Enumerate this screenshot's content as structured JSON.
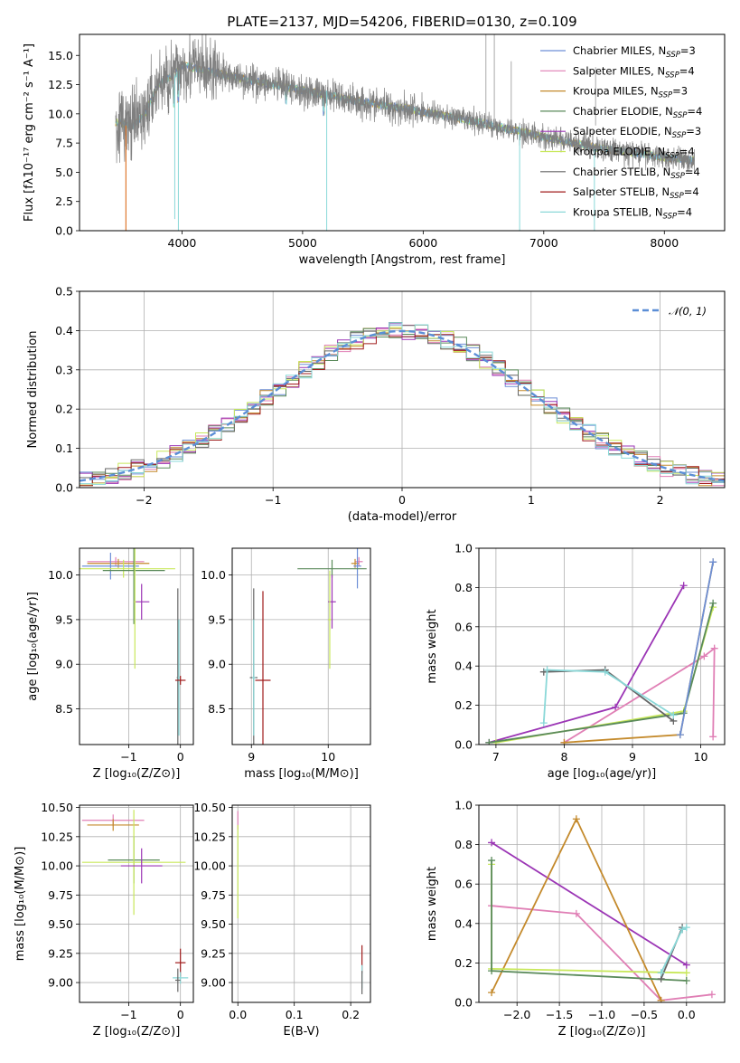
{
  "figure": {
    "title": "PLATE=2137, MJD=54206, FIBERID=0130, z=0.109"
  },
  "colors": {
    "Chabrier MILES": "#6d8fd6",
    "Salpeter MILES": "#e07fb5",
    "Kroupa MILES": "#c48a2c",
    "Chabrier ELODIE": "#5a8a5a",
    "Salpeter ELODIE": "#9b35b5",
    "Kroupa ELODIE": "#c8e85a",
    "Chabrier STELIB": "#666666",
    "Salpeter STELIB": "#a01c1c",
    "Kroupa STELIB": "#8ad8d8",
    "data": "#7f7f7f",
    "gaussian": "#5b8ed6",
    "orange": "#e07a30"
  },
  "chart_data": [
    {
      "id": "spectrum",
      "type": "line",
      "xlabel": "wavelength [Angstrom, rest frame]",
      "ylabel": "Flux [fλ10⁻¹⁷ erg cm⁻² s⁻¹ A⁻¹]",
      "xlim": [
        3150,
        8500
      ],
      "ylim": [
        0,
        16.8
      ],
      "xticks": [
        4000,
        5000,
        6000,
        7000,
        8000
      ],
      "yticks": [
        0.0,
        2.5,
        5.0,
        7.5,
        10.0,
        12.5,
        15.0
      ],
      "grid": false,
      "legend_position": "top-right",
      "legend": [
        "Chabrier MILES, N_SSP=3",
        "Salpeter MILES, N_SSP=4",
        "Kroupa MILES, N_SSP=3",
        "Chabrier ELODIE, N_SSP=4",
        "Salpeter ELODIE, N_SSP=3",
        "Kroupa ELODIE, N_SSP=4",
        "Chabrier STELIB, N_SSP=4",
        "Salpeter STELIB, N_SSP=4",
        "Kroupa STELIB, N_SSP=4"
      ],
      "continuum": {
        "x": [
          3450,
          3600,
          3700,
          3800,
          3950,
          4000,
          4200,
          4500,
          5000,
          5500,
          6000,
          6500,
          7000,
          7500,
          8000,
          8250
        ],
        "y": [
          9.3,
          9.0,
          10.2,
          12.5,
          13.5,
          14.2,
          13.7,
          13.0,
          12.0,
          11.0,
          10.2,
          9.2,
          8.0,
          7.0,
          6.3,
          6.0
        ]
      }
    },
    {
      "id": "residuals",
      "type": "line",
      "xlabel": "(data-model)/error",
      "ylabel": "Normed distribution",
      "xlim": [
        -2.5,
        2.5
      ],
      "ylim": [
        0,
        0.5
      ],
      "xticks": [
        -2,
        -1,
        0,
        1,
        2
      ],
      "yticks": [
        0.0,
        0.1,
        0.2,
        0.3,
        0.4,
        0.5
      ],
      "grid": true,
      "legend_position": "top-right",
      "legend": [
        "𝒩(0, 1)"
      ]
    },
    {
      "id": "age_vs_Z",
      "type": "scatter",
      "xlabel": "Z [log₁₀(Z/Z⊙)]",
      "ylabel": "age  [log₁₀(age/yr)]",
      "xlim": [
        -1.95,
        0.25
      ],
      "ylim": [
        8.1,
        10.3
      ],
      "xticks": [
        -1,
        0
      ],
      "yticks": [
        8.5,
        9.0,
        9.5,
        10.0
      ],
      "grid": true,
      "points": [
        {
          "model": "Salpeter MILES",
          "x": -1.25,
          "y": 10.15,
          "xerr": 0.55,
          "yerr": 0.05
        },
        {
          "model": "Kroupa MILES",
          "x": -1.2,
          "y": 10.13,
          "xerr": 0.6,
          "yerr": 0.05
        },
        {
          "model": "Chabrier MILES",
          "x": -1.35,
          "y": 10.1,
          "xerr": 0.55,
          "yerr": 0.15
        },
        {
          "model": "Kroupa ELODIE",
          "x": -1.1,
          "y": 10.07,
          "xerr": 1.0,
          "yerr": 0.1
        },
        {
          "model": "Chabrier ELODIE",
          "x": -0.9,
          "y": 10.05,
          "xerr": 0.6,
          "yerr": 0.6
        },
        {
          "model": "Salpeter ELODIE",
          "x": -0.75,
          "y": 9.7,
          "xerr": 0.15,
          "yerr": 0.2
        },
        {
          "model": "Kroupa ELODIE",
          "x": -0.88,
          "y": 9.7,
          "xerr": 0.02,
          "yerr": 0.75
        },
        {
          "model": "Chabrier STELIB",
          "x": -0.05,
          "y": 8.85,
          "xerr": 0.02,
          "yerr": 1.0
        },
        {
          "model": "Kroupa STELIB",
          "x": -0.03,
          "y": 8.85,
          "xerr": 0.02,
          "yerr": 0.65
        },
        {
          "model": "Salpeter STELIB",
          "x": 0.0,
          "y": 8.82,
          "xerr": 0.1,
          "yerr": 0.05
        }
      ]
    },
    {
      "id": "age_vs_mass",
      "type": "scatter",
      "xlabel": "mass [log₁₀(M/M⊙)]",
      "xlim": [
        8.75,
        10.55
      ],
      "ylim": [
        8.1,
        10.3
      ],
      "xticks": [
        9,
        10
      ],
      "yticks": [
        8.5,
        9.0,
        9.5,
        10.0
      ],
      "grid": true,
      "points": [
        {
          "model": "Salpeter MILES",
          "x": 10.4,
          "y": 10.15,
          "xerr": 0.05,
          "yerr": 0.05
        },
        {
          "model": "Kroupa MILES",
          "x": 10.35,
          "y": 10.13,
          "xerr": 0.05,
          "yerr": 0.05
        },
        {
          "model": "Chabrier MILES",
          "x": 10.38,
          "y": 10.1,
          "xerr": 0.05,
          "yerr": 0.25
        },
        {
          "model": "Chabrier ELODIE",
          "x": 10.05,
          "y": 10.07,
          "xerr": 0.45,
          "yerr": 0.1
        },
        {
          "model": "Salpeter ELODIE",
          "x": 10.05,
          "y": 9.7,
          "xerr": 0.05,
          "yerr": 0.3
        },
        {
          "model": "Kroupa ELODIE",
          "x": 10.02,
          "y": 9.5,
          "xerr": 0.02,
          "yerr": 0.55
        },
        {
          "model": "Chabrier STELIB",
          "x": 9.03,
          "y": 8.85,
          "xerr": 0.05,
          "yerr": 1.0
        },
        {
          "model": "Kroupa STELIB",
          "x": 9.03,
          "y": 8.85,
          "xerr": 0.02,
          "yerr": 0.65
        },
        {
          "model": "Salpeter STELIB",
          "x": 9.15,
          "y": 8.82,
          "xerr": 0.1,
          "yerr": 1.0
        }
      ]
    },
    {
      "id": "weight_vs_age",
      "type": "line",
      "xlabel": "age  [log₁₀(age/yr)]",
      "ylabel": "mass weight",
      "xlim": [
        6.75,
        10.35
      ],
      "ylim": [
        0,
        1
      ],
      "xticks": [
        7,
        8,
        9,
        10
      ],
      "yticks": [
        0.0,
        0.2,
        0.4,
        0.6,
        0.8,
        1.0
      ],
      "grid": true,
      "series": [
        {
          "model": "Salpeter ELODIE",
          "x": [
            6.9,
            8.75,
            9.75
          ],
          "y": [
            0.01,
            0.19,
            0.81
          ]
        },
        {
          "model": "Salpeter MILES",
          "x": [
            8.0,
            10.05,
            10.2,
            10.18
          ],
          "y": [
            0.01,
            0.45,
            0.49,
            0.04
          ]
        },
        {
          "model": "Kroupa MILES",
          "x": [
            8.0,
            9.7,
            10.18
          ],
          "y": [
            0.01,
            0.05,
            0.93
          ]
        },
        {
          "model": "Kroupa ELODIE",
          "x": [
            7.0,
            9.75,
            10.18
          ],
          "y": [
            0.01,
            0.17,
            0.7
          ]
        },
        {
          "model": "Chabrier ELODIE",
          "x": [
            6.9,
            9.75,
            10.18
          ],
          "y": [
            0.01,
            0.16,
            0.72
          ]
        },
        {
          "model": "Chabrier MILES",
          "x": [
            9.7,
            10.18
          ],
          "y": [
            0.05,
            0.93
          ]
        },
        {
          "model": "Chabrier STELIB",
          "x": [
            7.7,
            8.6,
            9.6
          ],
          "y": [
            0.37,
            0.38,
            0.12
          ]
        },
        {
          "model": "Kroupa STELIB",
          "x": [
            7.7,
            7.75,
            8.6,
            9.6
          ],
          "y": [
            0.11,
            0.38,
            0.37,
            0.15
          ]
        }
      ]
    },
    {
      "id": "mass_vs_Z",
      "type": "scatter",
      "xlabel": "Z [log₁₀(Z/Z⊙)]",
      "ylabel": "mass [log₁₀(M/M⊙)]",
      "xlim": [
        -1.95,
        0.25
      ],
      "ylim": [
        8.83,
        10.52
      ],
      "xticks": [
        -1,
        0
      ],
      "yticks": [
        9.0,
        9.25,
        9.5,
        9.75,
        10.0,
        10.25,
        10.5
      ],
      "grid": true,
      "points": [
        {
          "model": "Salpeter MILES",
          "x": -1.3,
          "y": 10.39,
          "xerr": 0.6,
          "yerr": 0.05
        },
        {
          "model": "Kroupa MILES",
          "x": -1.3,
          "y": 10.35,
          "xerr": 0.5,
          "yerr": 0.05
        },
        {
          "model": "Chabrier ELODIE",
          "x": -0.9,
          "y": 10.05,
          "xerr": 0.5,
          "yerr": 0.2
        },
        {
          "model": "Kroupa ELODIE",
          "x": -0.9,
          "y": 10.03,
          "xerr": 1.0,
          "yerr": 0.45
        },
        {
          "model": "Salpeter ELODIE",
          "x": -0.75,
          "y": 10.0,
          "xerr": 0.4,
          "yerr": 0.15
        },
        {
          "model": "Salpeter STELIB",
          "x": 0.0,
          "y": 9.17,
          "xerr": 0.1,
          "yerr": 0.12
        },
        {
          "model": "Kroupa STELIB",
          "x": 0.0,
          "y": 9.04,
          "xerr": 0.15,
          "yerr": 0.05
        },
        {
          "model": "Chabrier STELIB",
          "x": -0.05,
          "y": 9.02,
          "xerr": 0.05,
          "yerr": 0.1
        }
      ]
    },
    {
      "id": "mass_vs_EBV",
      "type": "scatter",
      "xlabel": "E(B-V)",
      "xlim": [
        -0.01,
        0.235
      ],
      "ylim": [
        8.83,
        10.52
      ],
      "xticks": [
        0.0,
        0.1,
        0.2
      ],
      "yticks": [
        9.0,
        9.25,
        9.5,
        9.75,
        10.0,
        10.25,
        10.5
      ],
      "grid": true,
      "points": [
        {
          "model": "Salpeter MILES",
          "x": 0.0,
          "y": 10.39,
          "xerr": 0.0,
          "yerr": 0.08
        },
        {
          "model": "Kroupa ELODIE",
          "x": 0.0,
          "y": 9.95,
          "xerr": 0.0,
          "yerr": 0.4
        },
        {
          "model": "Salpeter STELIB",
          "x": 0.22,
          "y": 9.2,
          "xerr": 0.0,
          "yerr": 0.12
        },
        {
          "model": "Kroupa STELIB",
          "x": 0.22,
          "y": 9.05,
          "xerr": 0.0,
          "yerr": 0.1
        },
        {
          "model": "Chabrier STELIB",
          "x": 0.22,
          "y": 9.0,
          "xerr": 0.0,
          "yerr": 0.1
        }
      ]
    },
    {
      "id": "weight_vs_Z",
      "type": "line",
      "xlabel": "Z [log₁₀(Z/Z⊙)]",
      "ylabel": "mass weight",
      "xlim": [
        -2.45,
        0.45
      ],
      "ylim": [
        0,
        1
      ],
      "xticks": [
        -2.0,
        -1.5,
        -1.0,
        -0.5,
        0.0
      ],
      "yticks": [
        0.0,
        0.2,
        0.4,
        0.6,
        0.8,
        1.0
      ],
      "grid": true,
      "series": [
        {
          "model": "Salpeter ELODIE",
          "x": [
            -2.3,
            0.0
          ],
          "y": [
            0.81,
            0.19
          ]
        },
        {
          "model": "Salpeter MILES",
          "x": [
            -2.3,
            -1.3,
            -0.3,
            0.3
          ],
          "y": [
            0.49,
            0.45,
            0.01,
            0.04
          ]
        },
        {
          "model": "Kroupa MILES",
          "x": [
            -2.3,
            -1.3,
            -0.3
          ],
          "y": [
            0.05,
            0.93,
            0.01
          ]
        },
        {
          "model": "Kroupa ELODIE",
          "x": [
            -2.3,
            -2.3,
            0.0
          ],
          "y": [
            0.7,
            0.17,
            0.15
          ]
        },
        {
          "model": "Chabrier ELODIE",
          "x": [
            -2.3,
            -2.3,
            0.0
          ],
          "y": [
            0.72,
            0.16,
            0.11
          ]
        },
        {
          "model": "Chabrier STELIB",
          "x": [
            -0.3,
            -0.05,
            -0.05
          ],
          "y": [
            0.12,
            0.38,
            0.37
          ]
        },
        {
          "model": "Kroupa STELIB",
          "x": [
            -0.3,
            -0.05,
            0.0
          ],
          "y": [
            0.15,
            0.37,
            0.38
          ]
        }
      ]
    }
  ]
}
